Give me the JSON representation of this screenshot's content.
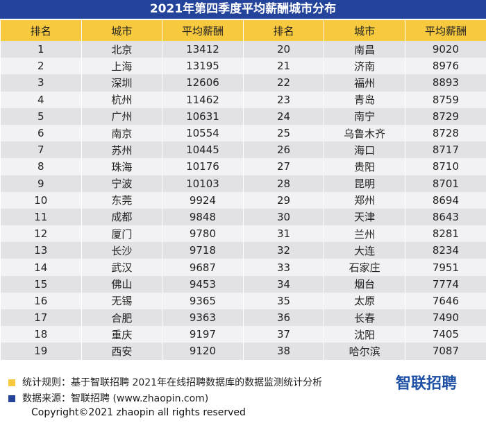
{
  "title": "2021年第四季度平均薪酬城市分布",
  "headers": [
    "排名",
    "城市",
    "平均薪酬",
    "排名",
    "城市",
    "平均薪酬"
  ],
  "rows": [
    [
      "1",
      "北京",
      "13412",
      "20",
      "南昌",
      "9020"
    ],
    [
      "2",
      "上海",
      "13195",
      "21",
      "济南",
      "8976"
    ],
    [
      "3",
      "深圳",
      "12606",
      "22",
      "福州",
      "8893"
    ],
    [
      "4",
      "杭州",
      "11462",
      "23",
      "青岛",
      "8759"
    ],
    [
      "5",
      "广州",
      "10631",
      "24",
      "南宁",
      "8729"
    ],
    [
      "6",
      "南京",
      "10554",
      "25",
      "乌鲁木齐",
      "8728"
    ],
    [
      "7",
      "苏州",
      "10445",
      "26",
      "海口",
      "8717"
    ],
    [
      "8",
      "珠海",
      "10176",
      "27",
      "贵阳",
      "8710"
    ],
    [
      "9",
      "宁波",
      "10103",
      "28",
      "昆明",
      "8701"
    ],
    [
      "10",
      "东莞",
      "9924",
      "29",
      "郑州",
      "8694"
    ],
    [
      "11",
      "成都",
      "9848",
      "30",
      "天津",
      "8643"
    ],
    [
      "12",
      "厦门",
      "9780",
      "31",
      "兰州",
      "8281"
    ],
    [
      "13",
      "长沙",
      "9718",
      "32",
      "大连",
      "8234"
    ],
    [
      "14",
      "武汉",
      "9687",
      "33",
      "石家庄",
      "7951"
    ],
    [
      "15",
      "佛山",
      "9453",
      "34",
      "烟台",
      "7774"
    ],
    [
      "16",
      "无锡",
      "9365",
      "35",
      "太原",
      "7646"
    ],
    [
      "17",
      "合肥",
      "9363",
      "36",
      "长春",
      "7490"
    ],
    [
      "18",
      "重庆",
      "9197",
      "37",
      "沈阳",
      "7405"
    ],
    [
      "19",
      "西安",
      "9120",
      "38",
      "哈尔滨",
      "7087"
    ]
  ],
  "notes": [
    {
      "text": "统计规则：基于智联招聘 2021年在线招聘数据库的数据监测统计分析",
      "color": "#f6c93e"
    },
    {
      "text": "数据来源：智联招聘 (www.zhaopin.com)",
      "color": "#24439a"
    }
  ],
  "logo": "智联招聘",
  "copyright": "Copyright©2021 zhaopin all rights reserved"
}
